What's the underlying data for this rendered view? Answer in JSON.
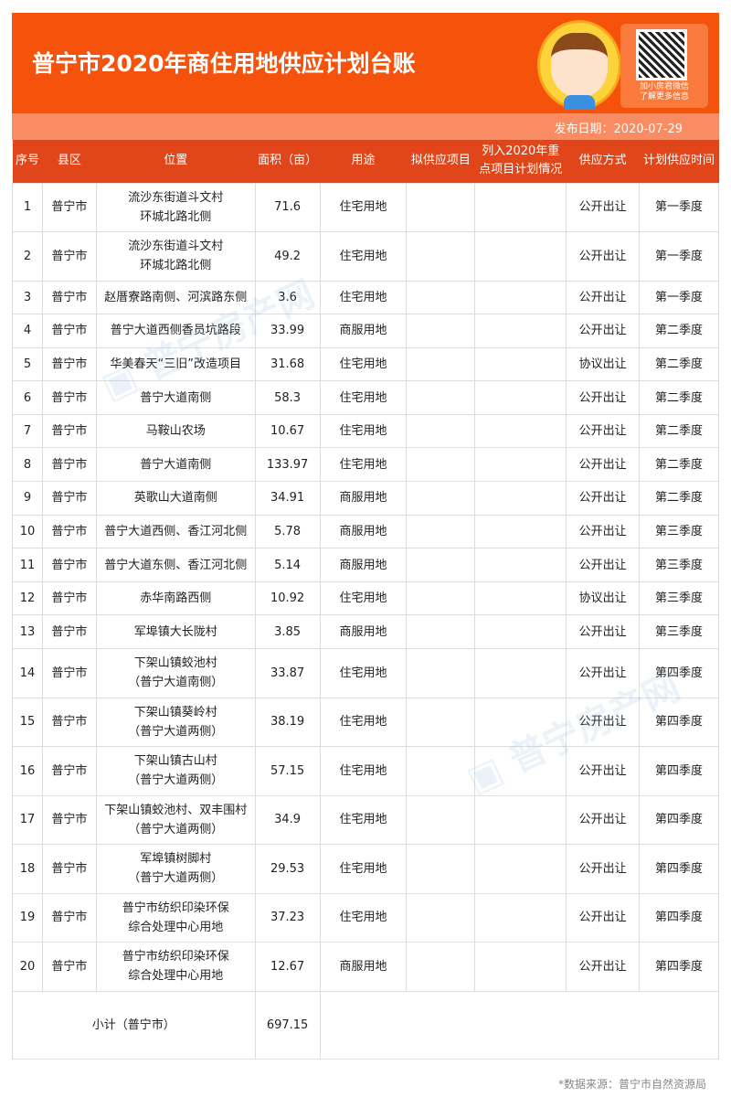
{
  "header": {
    "title": "普宁市2020年商住用地供应计划台账",
    "qr_caption_1": "加小房君微信",
    "qr_caption_2": "了解更多信息"
  },
  "date": "发布日期：2020-07-29",
  "columns": [
    "序号",
    "县区",
    "位置",
    "面积（亩）",
    "用途",
    "拟供应项目",
    "列入2020年重点项目计划情况",
    "供应方式",
    "计划供应时间"
  ],
  "rows": [
    [
      "1",
      "普宁市",
      "流沙东街道斗文村\n环城北路北侧",
      "71.6",
      "住宅用地",
      "",
      "",
      "公开出让",
      "第一季度"
    ],
    [
      "2",
      "普宁市",
      "流沙东街道斗文村\n环城北路北侧",
      "49.2",
      "住宅用地",
      "",
      "",
      "公开出让",
      "第一季度"
    ],
    [
      "3",
      "普宁市",
      "赵厝寮路南侧、河滨路东侧",
      "3.6",
      "住宅用地",
      "",
      "",
      "公开出让",
      "第一季度"
    ],
    [
      "4",
      "普宁市",
      "普宁大道西侧香员坑路段",
      "33.99",
      "商服用地",
      "",
      "",
      "公开出让",
      "第二季度"
    ],
    [
      "5",
      "普宁市",
      "华美春天“三旧”改造项目",
      "31.68",
      "住宅用地",
      "",
      "",
      "协议出让",
      "第二季度"
    ],
    [
      "6",
      "普宁市",
      "普宁大道南侧",
      "58.3",
      "住宅用地",
      "",
      "",
      "公开出让",
      "第二季度"
    ],
    [
      "7",
      "普宁市",
      "马鞍山农场",
      "10.67",
      "住宅用地",
      "",
      "",
      "公开出让",
      "第二季度"
    ],
    [
      "8",
      "普宁市",
      "普宁大道南侧",
      "133.97",
      "住宅用地",
      "",
      "",
      "公开出让",
      "第二季度"
    ],
    [
      "9",
      "普宁市",
      "英歌山大道南侧",
      "34.91",
      "商服用地",
      "",
      "",
      "公开出让",
      "第二季度"
    ],
    [
      "10",
      "普宁市",
      "普宁大道西侧、香江河北侧",
      "5.78",
      "商服用地",
      "",
      "",
      "公开出让",
      "第三季度"
    ],
    [
      "11",
      "普宁市",
      "普宁大道东侧、香江河北侧",
      "5.14",
      "商服用地",
      "",
      "",
      "公开出让",
      "第三季度"
    ],
    [
      "12",
      "普宁市",
      "赤华南路西侧",
      "10.92",
      "住宅用地",
      "",
      "",
      "协议出让",
      "第三季度"
    ],
    [
      "13",
      "普宁市",
      "军埠镇大长陇村",
      "3.85",
      "商服用地",
      "",
      "",
      "公开出让",
      "第三季度"
    ],
    [
      "14",
      "普宁市",
      "下架山镇蛟池村\n（普宁大道南侧）",
      "33.87",
      "住宅用地",
      "",
      "",
      "公开出让",
      "第四季度"
    ],
    [
      "15",
      "普宁市",
      "下架山镇葵岭村\n（普宁大道两侧）",
      "38.19",
      "住宅用地",
      "",
      "",
      "公开出让",
      "第四季度"
    ],
    [
      "16",
      "普宁市",
      "下架山镇古山村\n（普宁大道两侧）",
      "57.15",
      "住宅用地",
      "",
      "",
      "公开出让",
      "第四季度"
    ],
    [
      "17",
      "普宁市",
      "下架山镇蛟池村、双丰围村\n（普宁大道两侧）",
      "34.9",
      "住宅用地",
      "",
      "",
      "公开出让",
      "第四季度"
    ],
    [
      "18",
      "普宁市",
      "军埠镇树脚村\n（普宁大道两侧）",
      "29.53",
      "住宅用地",
      "",
      "",
      "公开出让",
      "第四季度"
    ],
    [
      "19",
      "普宁市",
      "普宁市纺织印染环保\n综合处理中心用地",
      "37.23",
      "住宅用地",
      "",
      "",
      "公开出让",
      "第四季度"
    ],
    [
      "20",
      "普宁市",
      "普宁市纺织印染环保\n综合处理中心用地",
      "12.67",
      "商服用地",
      "",
      "",
      "公开出让",
      "第四季度"
    ]
  ],
  "subtotal": {
    "label": "小计（普宁市）",
    "value": "697.15"
  },
  "source": "*数据来源：普宁市自然资源局",
  "watermark": "普宁房产网 PNFANG.COM",
  "colors": {
    "header": "#f5520b",
    "date_bar": "#f98c63",
    "table_header": "#e0461a"
  }
}
